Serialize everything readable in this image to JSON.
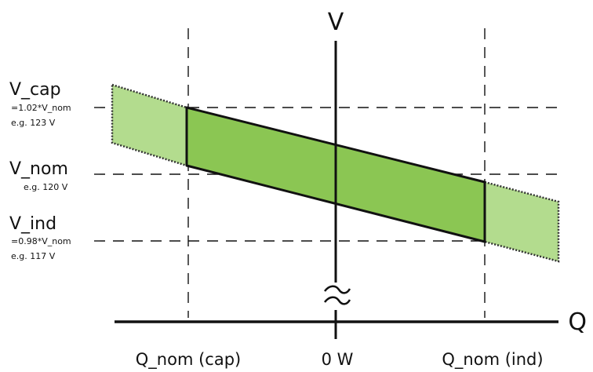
{
  "diagram": {
    "axis_v_label": "V",
    "axis_q_label": "Q",
    "levels": {
      "cap": {
        "name": "V_cap",
        "formula": "=1.02*V_nom",
        "example": "e.g. 123 V"
      },
      "nom": {
        "name": "V_nom",
        "example": "e.g. 120 V"
      },
      "ind": {
        "name": "V_ind",
        "formula": "=0.98*V_nom",
        "example": "e.g. 117 V"
      }
    },
    "q_labels": {
      "cap": "Q_nom (cap)",
      "zero": "0 W",
      "ind": "Q_nom (ind)"
    },
    "colors": {
      "band_main": "#8bc653",
      "band_extension": "#b3dc8e",
      "line": "#111111"
    }
  }
}
